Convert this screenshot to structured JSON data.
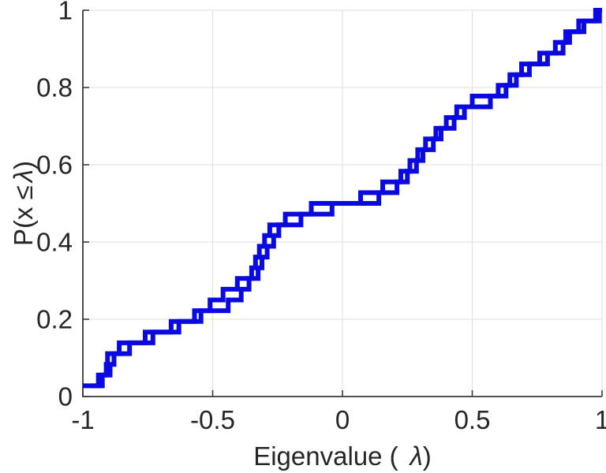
{
  "chart_data": {
    "type": "line",
    "subtype": "empirical-cdf-step",
    "title": "",
    "xlabel": {
      "prefix": "Eigenvalue (",
      "symbol": "λ",
      "suffix": ")"
    },
    "ylabel": {
      "prefix": "P(x ≤",
      "symbol": "λ",
      "suffix": ")"
    },
    "xlim": [
      -1,
      1
    ],
    "ylim": [
      0,
      1
    ],
    "x_ticks": [
      -1,
      -0.5,
      0,
      0.5,
      1
    ],
    "x_tick_labels": [
      "-1",
      "-0.5",
      "0",
      "0.5",
      "1"
    ],
    "y_ticks": [
      0,
      0.2,
      0.4,
      0.6,
      0.8,
      1
    ],
    "y_tick_labels": [
      "0",
      "0.2",
      "0.4",
      "0.6",
      "0.8",
      "1"
    ],
    "grid": true,
    "legend_position": "none",
    "line_color": "#0a0ae0",
    "line_width": 6,
    "axis_color": "#3b3b3b",
    "grid_color": "#e3e3e3",
    "text_color": "#262626",
    "series": [
      {
        "name": "ecdf-series-1",
        "samples": [
          -1.0,
          -0.94,
          -0.91,
          -0.905,
          -0.86,
          -0.76,
          -0.66,
          -0.57,
          -0.51,
          -0.46,
          -0.405,
          -0.35,
          -0.335,
          -0.32,
          -0.3,
          -0.28,
          -0.22,
          -0.12,
          0.14,
          0.21,
          0.25,
          0.285,
          0.31,
          0.35,
          0.38,
          0.43,
          0.47,
          0.57,
          0.63,
          0.67,
          0.72,
          0.79,
          0.85,
          0.875,
          0.93,
          0.975
        ]
      },
      {
        "name": "ecdf-series-2",
        "samples": [
          -0.97,
          -0.925,
          -0.895,
          -0.88,
          -0.82,
          -0.73,
          -0.63,
          -0.545,
          -0.44,
          -0.39,
          -0.36,
          -0.325,
          -0.31,
          -0.29,
          -0.265,
          -0.245,
          -0.16,
          -0.04,
          0.07,
          0.155,
          0.225,
          0.26,
          0.29,
          0.32,
          0.36,
          0.4,
          0.44,
          0.5,
          0.6,
          0.645,
          0.69,
          0.76,
          0.82,
          0.86,
          0.91,
          0.99
        ]
      }
    ]
  }
}
